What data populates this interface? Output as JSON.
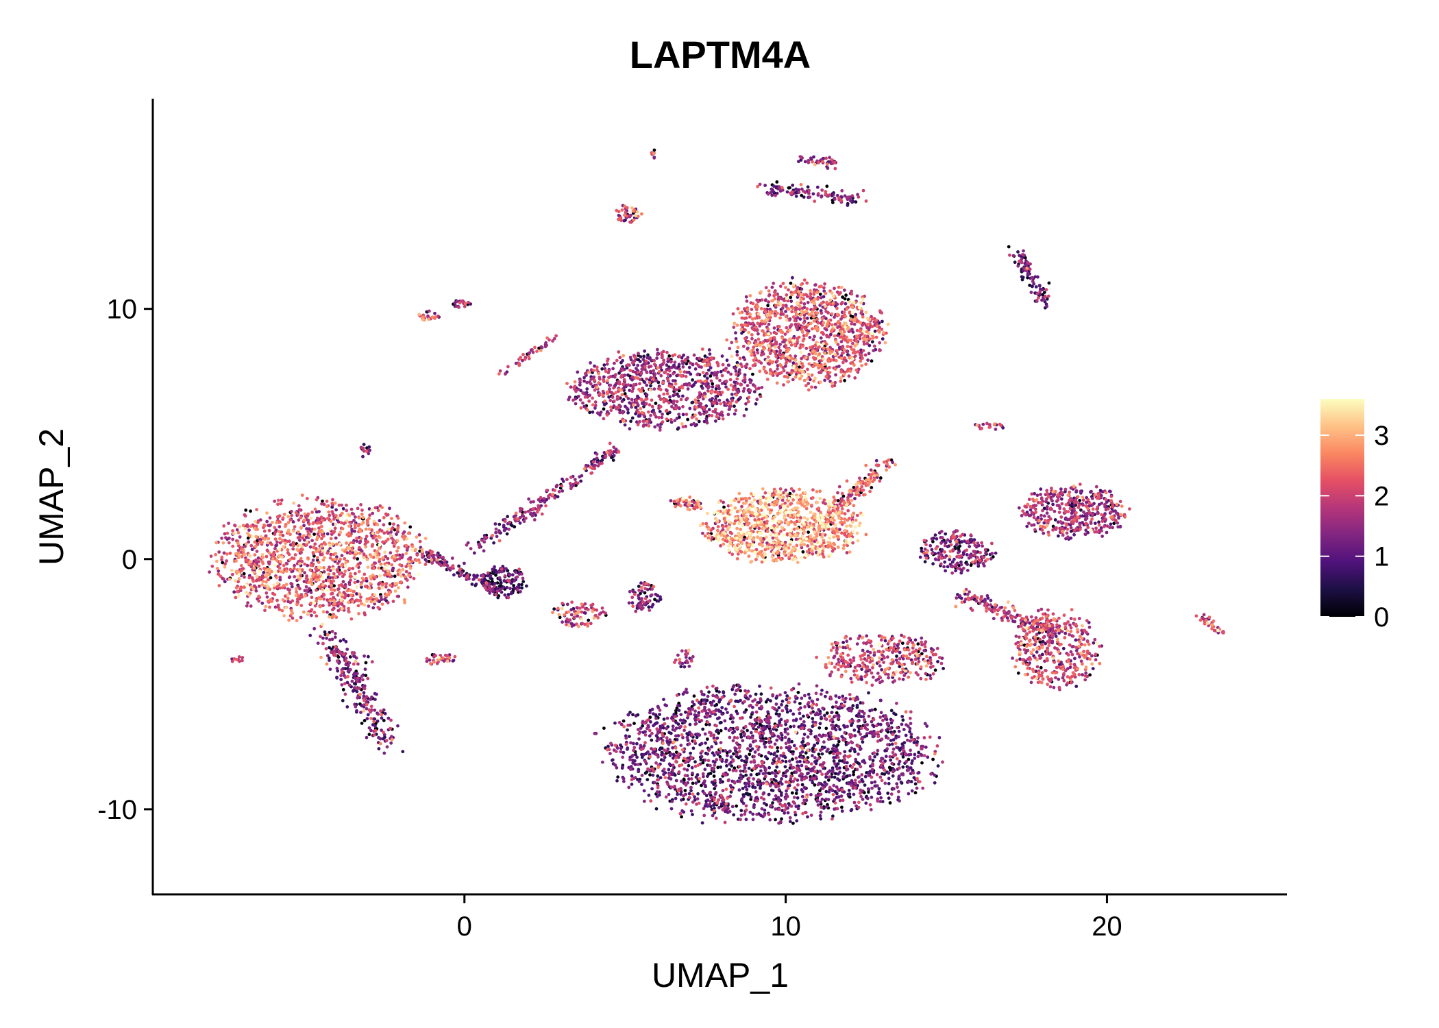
{
  "chart_data": {
    "type": "scatter",
    "title": "LAPTM4A",
    "xlabel": "UMAP_1",
    "ylabel": "UMAP_2",
    "xlim": [
      -9.7,
      25.6
    ],
    "ylim": [
      -13.4,
      18.4
    ],
    "xticks": [
      0,
      10,
      20
    ],
    "yticks": [
      -10,
      0,
      10
    ],
    "xtick_labels": [
      "0",
      "10",
      "20"
    ],
    "ytick_labels": [
      "-10",
      "0",
      "10"
    ],
    "grid": false,
    "legend": {
      "type": "colorbar",
      "placement": "right",
      "range": [
        0,
        3.6
      ],
      "ticks": [
        0,
        1,
        2,
        3
      ],
      "tick_labels": [
        "0",
        "1",
        "2",
        "3"
      ],
      "colormap": "magma",
      "colors": [
        "#000004",
        "#1c1044",
        "#4f127b",
        "#812581",
        "#b5367a",
        "#e55064",
        "#fb8761",
        "#fec287",
        "#fcfdbf"
      ]
    },
    "clusters": [
      {
        "name": "left-main",
        "cx": -4.5,
        "cy": 0.0,
        "rx": 3.1,
        "ry": 2.3,
        "n": 1400,
        "mean": 2.2
      },
      {
        "name": "left-tail",
        "x0": -4.2,
        "y0": -3.0,
        "x1": -2.4,
        "y1": -7.5,
        "n": 260,
        "mean": 1.2,
        "w": 0.6
      },
      {
        "name": "top-main",
        "cx": 10.7,
        "cy": 9.0,
        "rx": 2.3,
        "ry": 2.0,
        "n": 1100,
        "mean": 2.1
      },
      {
        "name": "top-band",
        "cx": 6.3,
        "cy": 6.8,
        "rx": 2.9,
        "ry": 1.5,
        "n": 900,
        "mean": 1.5
      },
      {
        "name": "bright-center",
        "cx": 9.9,
        "cy": 1.3,
        "rx": 2.4,
        "ry": 1.4,
        "n": 900,
        "mean": 2.7
      },
      {
        "name": "bright-arm",
        "x0": 11.5,
        "y0": 2.0,
        "x1": 13.2,
        "y1": 3.9,
        "n": 120,
        "mean": 2.2,
        "w": 0.4
      },
      {
        "name": "bottom-main",
        "cx": 9.5,
        "cy": -7.8,
        "rx": 5.0,
        "ry": 2.6,
        "n": 2200,
        "mean": 1.1
      },
      {
        "name": "bottom-upper",
        "cx": 13.0,
        "cy": -4.0,
        "rx": 1.9,
        "ry": 1.0,
        "n": 320,
        "mean": 1.9
      },
      {
        "name": "right-upper",
        "cx": 19.0,
        "cy": 1.9,
        "rx": 1.6,
        "ry": 1.0,
        "n": 420,
        "mean": 1.6
      },
      {
        "name": "right-lower",
        "cx": 18.4,
        "cy": -3.6,
        "rx": 1.3,
        "ry": 1.5,
        "n": 380,
        "mean": 2.0
      },
      {
        "name": "right-bridge",
        "x0": 15.5,
        "y0": -1.5,
        "x1": 18.5,
        "y1": -3.0,
        "n": 160,
        "mean": 1.6,
        "w": 0.4
      },
      {
        "name": "mid-right",
        "cx": 15.3,
        "cy": 0.3,
        "rx": 1.1,
        "ry": 0.8,
        "n": 220,
        "mean": 1.2
      },
      {
        "name": "purple-left",
        "cx": 1.2,
        "cy": -0.9,
        "rx": 0.7,
        "ry": 0.6,
        "n": 140,
        "mean": 0.8
      },
      {
        "name": "streak-left",
        "x0": -1.3,
        "y0": 0.3,
        "x1": 1.0,
        "y1": -1.3,
        "n": 120,
        "mean": 1.2,
        "w": 0.3
      },
      {
        "name": "streak-diag",
        "x0": 0.3,
        "y0": 0.4,
        "x1": 4.8,
        "y1": 4.5,
        "n": 200,
        "mean": 1.3,
        "w": 0.35
      },
      {
        "name": "small-a",
        "cx": -1.1,
        "cy": 9.7,
        "rx": 0.3,
        "ry": 0.2,
        "n": 25,
        "mean": 1.8
      },
      {
        "name": "small-b",
        "cx": -0.1,
        "cy": 10.2,
        "rx": 0.3,
        "ry": 0.15,
        "n": 20,
        "mean": 1.7
      },
      {
        "name": "streak-c",
        "x0": 1.0,
        "y0": 7.2,
        "x1": 2.8,
        "y1": 8.9,
        "n": 40,
        "mean": 1.8,
        "w": 0.2
      },
      {
        "name": "small-d",
        "cx": -3.1,
        "cy": 4.3,
        "rx": 0.2,
        "ry": 0.3,
        "n": 15,
        "mean": 1.2
      },
      {
        "name": "small-e",
        "cx": 5.1,
        "cy": 13.8,
        "rx": 0.4,
        "ry": 0.35,
        "n": 45,
        "mean": 1.9
      },
      {
        "name": "small-f",
        "cx": 5.9,
        "cy": 16.2,
        "rx": 0.1,
        "ry": 0.2,
        "n": 8,
        "mean": 1.5
      },
      {
        "name": "arc-top",
        "x0": 9.3,
        "y0": 14.8,
        "x1": 12.3,
        "y1": 14.4,
        "n": 110,
        "mean": 1.3,
        "w": 0.35
      },
      {
        "name": "arc-top-2",
        "x0": 10.5,
        "y0": 16.0,
        "x1": 11.5,
        "y1": 15.8,
        "n": 40,
        "mean": 1.5,
        "w": 0.25
      },
      {
        "name": "far-right-top",
        "x0": 17.2,
        "y0": 12.3,
        "x1": 18.1,
        "y1": 10.2,
        "n": 90,
        "mean": 1.1,
        "w": 0.35
      },
      {
        "name": "small-g",
        "cx": 16.3,
        "cy": 5.3,
        "rx": 0.6,
        "ry": 0.15,
        "n": 20,
        "mean": 1.8
      },
      {
        "name": "far-right-low",
        "x0": 22.9,
        "y0": -2.3,
        "x1": 23.6,
        "y1": -3.0,
        "n": 35,
        "mean": 2.0,
        "w": 0.15
      },
      {
        "name": "small-h",
        "cx": 3.6,
        "cy": -2.2,
        "rx": 0.8,
        "ry": 0.5,
        "n": 80,
        "mean": 1.9
      },
      {
        "name": "small-i",
        "cx": 5.6,
        "cy": -1.5,
        "rx": 0.5,
        "ry": 0.6,
        "n": 70,
        "mean": 1.3
      },
      {
        "name": "small-j",
        "cx": -0.8,
        "cy": -4.0,
        "rx": 0.5,
        "ry": 0.25,
        "n": 35,
        "mean": 1.9
      },
      {
        "name": "small-k",
        "cx": 6.8,
        "cy": -4.0,
        "rx": 0.3,
        "ry": 0.4,
        "n": 25,
        "mean": 1.6
      },
      {
        "name": "small-l",
        "cx": 6.9,
        "cy": 2.2,
        "rx": 0.5,
        "ry": 0.3,
        "n": 45,
        "mean": 2.2
      },
      {
        "name": "small-m",
        "cx": -7.1,
        "cy": -4.0,
        "rx": 0.2,
        "ry": 0.15,
        "n": 10,
        "mean": 1.5
      }
    ]
  }
}
